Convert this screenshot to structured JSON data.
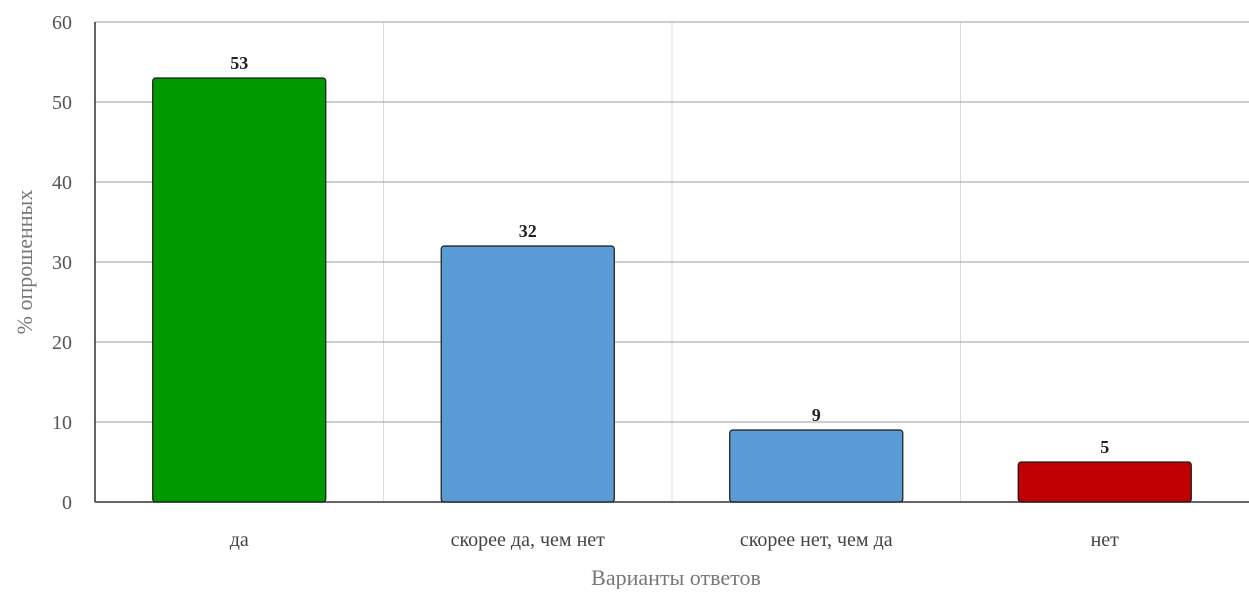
{
  "chart_data": {
    "type": "bar",
    "categories": [
      "да",
      "скорее да, чем нет",
      "скорее нет, чем да",
      "нет"
    ],
    "values": [
      53,
      32,
      9,
      5
    ],
    "bar_colors": [
      "#009900",
      "#5B9BD5",
      "#5B9BD5",
      "#C00000"
    ],
    "xlabel": "Варианты ответов",
    "ylabel": "% опрошенных",
    "ylim": [
      0,
      60
    ],
    "yticks": [
      0,
      10,
      20,
      30,
      40,
      50,
      60
    ],
    "grid": true,
    "data_labels": true
  },
  "colors": {
    "gridline": "#9e9e9e",
    "vertical_grid": "#dddddd",
    "axis": "#333333",
    "bar_border": "#1a1a1a"
  }
}
